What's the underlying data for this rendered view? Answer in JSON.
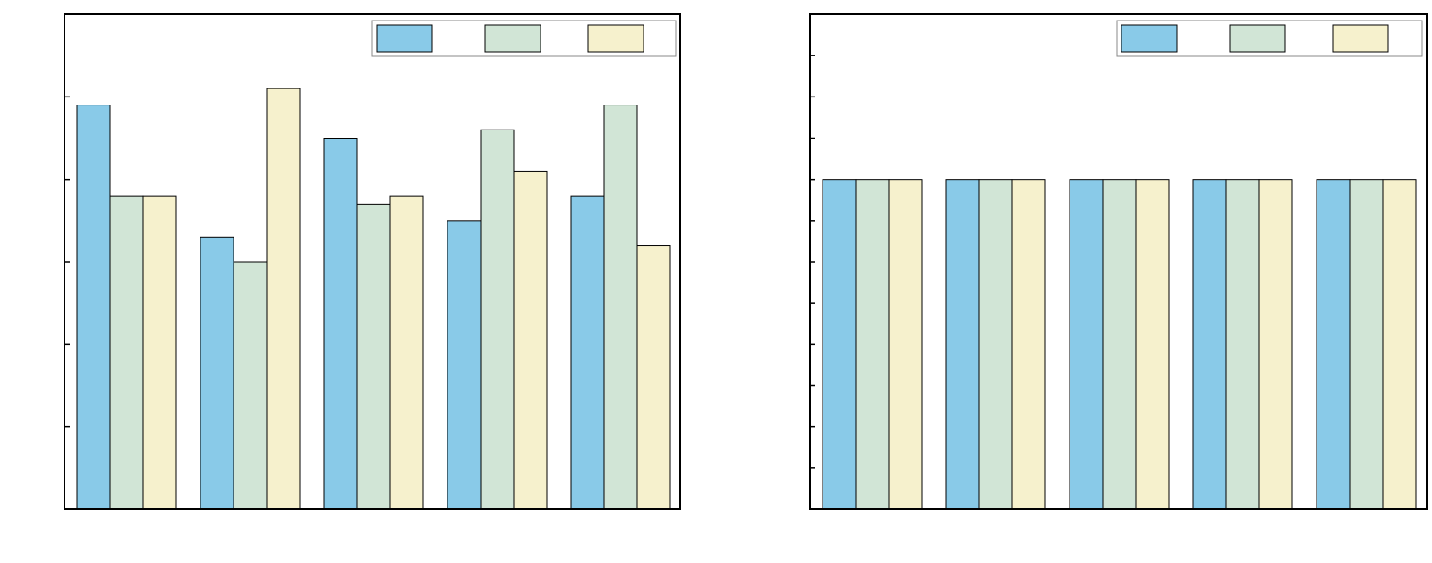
{
  "colors": {
    "series_1": "#89cae8",
    "series_2": "#d1e5d6",
    "series_3": "#f6f1cd"
  },
  "chart_data": [
    {
      "type": "bar",
      "grid": false,
      "legend_position": "top-right",
      "ylim": [
        0,
        6
      ],
      "yticks": [
        1,
        2,
        3,
        4,
        5
      ],
      "categories": [
        "",
        "",
        "",
        "",
        ""
      ],
      "series": [
        {
          "values": [
            4.9,
            3.3,
            4.5,
            3.5,
            3.8
          ]
        },
        {
          "values": [
            3.8,
            3.0,
            3.7,
            4.6,
            4.9
          ]
        },
        {
          "values": [
            3.8,
            5.1,
            3.8,
            4.1,
            3.2
          ]
        }
      ]
    },
    {
      "type": "bar",
      "grid": false,
      "legend_position": "top-right",
      "ylim": [
        0,
        12
      ],
      "yticks": [
        1,
        2,
        3,
        4,
        5,
        6,
        7,
        8,
        9,
        10,
        11
      ],
      "categories": [
        "",
        "",
        "",
        "",
        ""
      ],
      "series": [
        {
          "values": [
            8,
            8,
            8,
            8,
            8
          ]
        },
        {
          "values": [
            8,
            8,
            8,
            8,
            8
          ]
        },
        {
          "values": [
            8,
            8,
            8,
            8,
            8
          ]
        }
      ]
    }
  ]
}
